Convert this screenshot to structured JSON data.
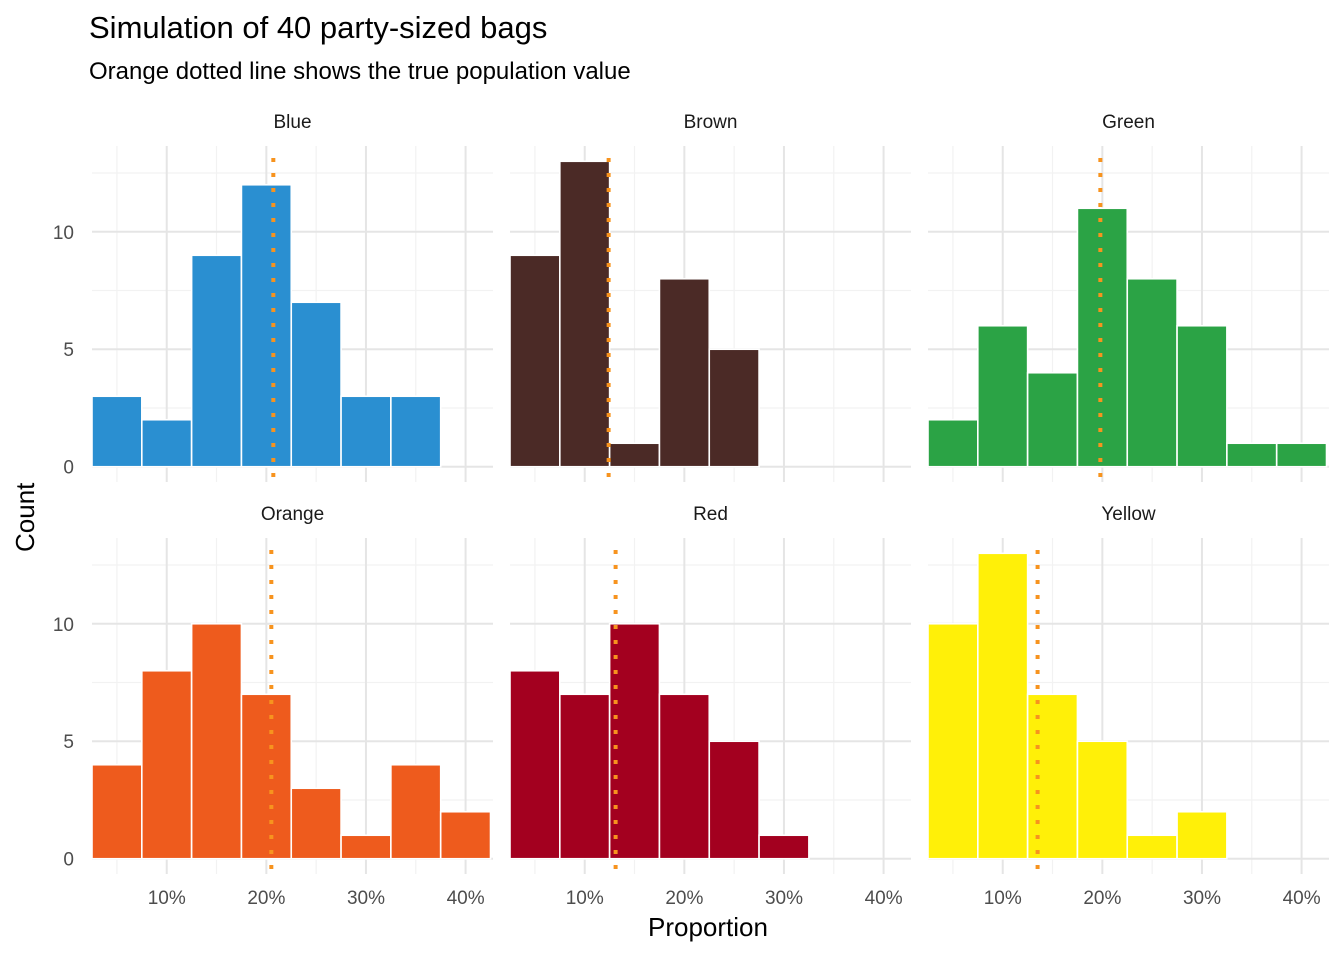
{
  "chart_data": {
    "type": "bar",
    "title": "Simulation of 40 party-sized bags",
    "subtitle": "Orange dotted line shows the true population value",
    "xlabel": "Proportion",
    "ylabel": "Count",
    "bin_centers": [
      0.05,
      0.1,
      0.15,
      0.2,
      0.25,
      0.3,
      0.35,
      0.4
    ],
    "bin_width": 0.05,
    "xlim": [
      0.025,
      0.4275
    ],
    "ylim": [
      -0.65,
      13.65
    ],
    "x_ticks": [
      0.1,
      0.2,
      0.3,
      0.4
    ],
    "x_tick_labels": [
      "10%",
      "20%",
      "30%",
      "40%"
    ],
    "y_ticks": [
      0,
      5,
      10
    ],
    "y_tick_labels": [
      "0",
      "5",
      "10"
    ],
    "grid": true,
    "reference_line_color": "#F7931E",
    "panels": [
      {
        "name": "Blue",
        "color": "#2A8FD1",
        "true_value": 0.207,
        "values": [
          3,
          2,
          9,
          12,
          7,
          3,
          3,
          0
        ]
      },
      {
        "name": "Brown",
        "color": "#4B2A26",
        "true_value": 0.124,
        "values": [
          9,
          13,
          1,
          8,
          5,
          0,
          0,
          0
        ]
      },
      {
        "name": "Green",
        "color": "#2BA345",
        "true_value": 0.198,
        "values": [
          2,
          6,
          4,
          11,
          8,
          6,
          1,
          1
        ]
      },
      {
        "name": "Orange",
        "color": "#EE5B1D",
        "true_value": 0.205,
        "values": [
          4,
          8,
          10,
          7,
          3,
          1,
          4,
          2
        ]
      },
      {
        "name": "Red",
        "color": "#A3001F",
        "true_value": 0.131,
        "values": [
          8,
          7,
          10,
          7,
          5,
          1,
          0,
          0
        ]
      },
      {
        "name": "Yellow",
        "color": "#FFF008",
        "true_value": 0.135,
        "values": [
          10,
          13,
          7,
          5,
          1,
          2,
          0,
          0
        ]
      }
    ]
  }
}
